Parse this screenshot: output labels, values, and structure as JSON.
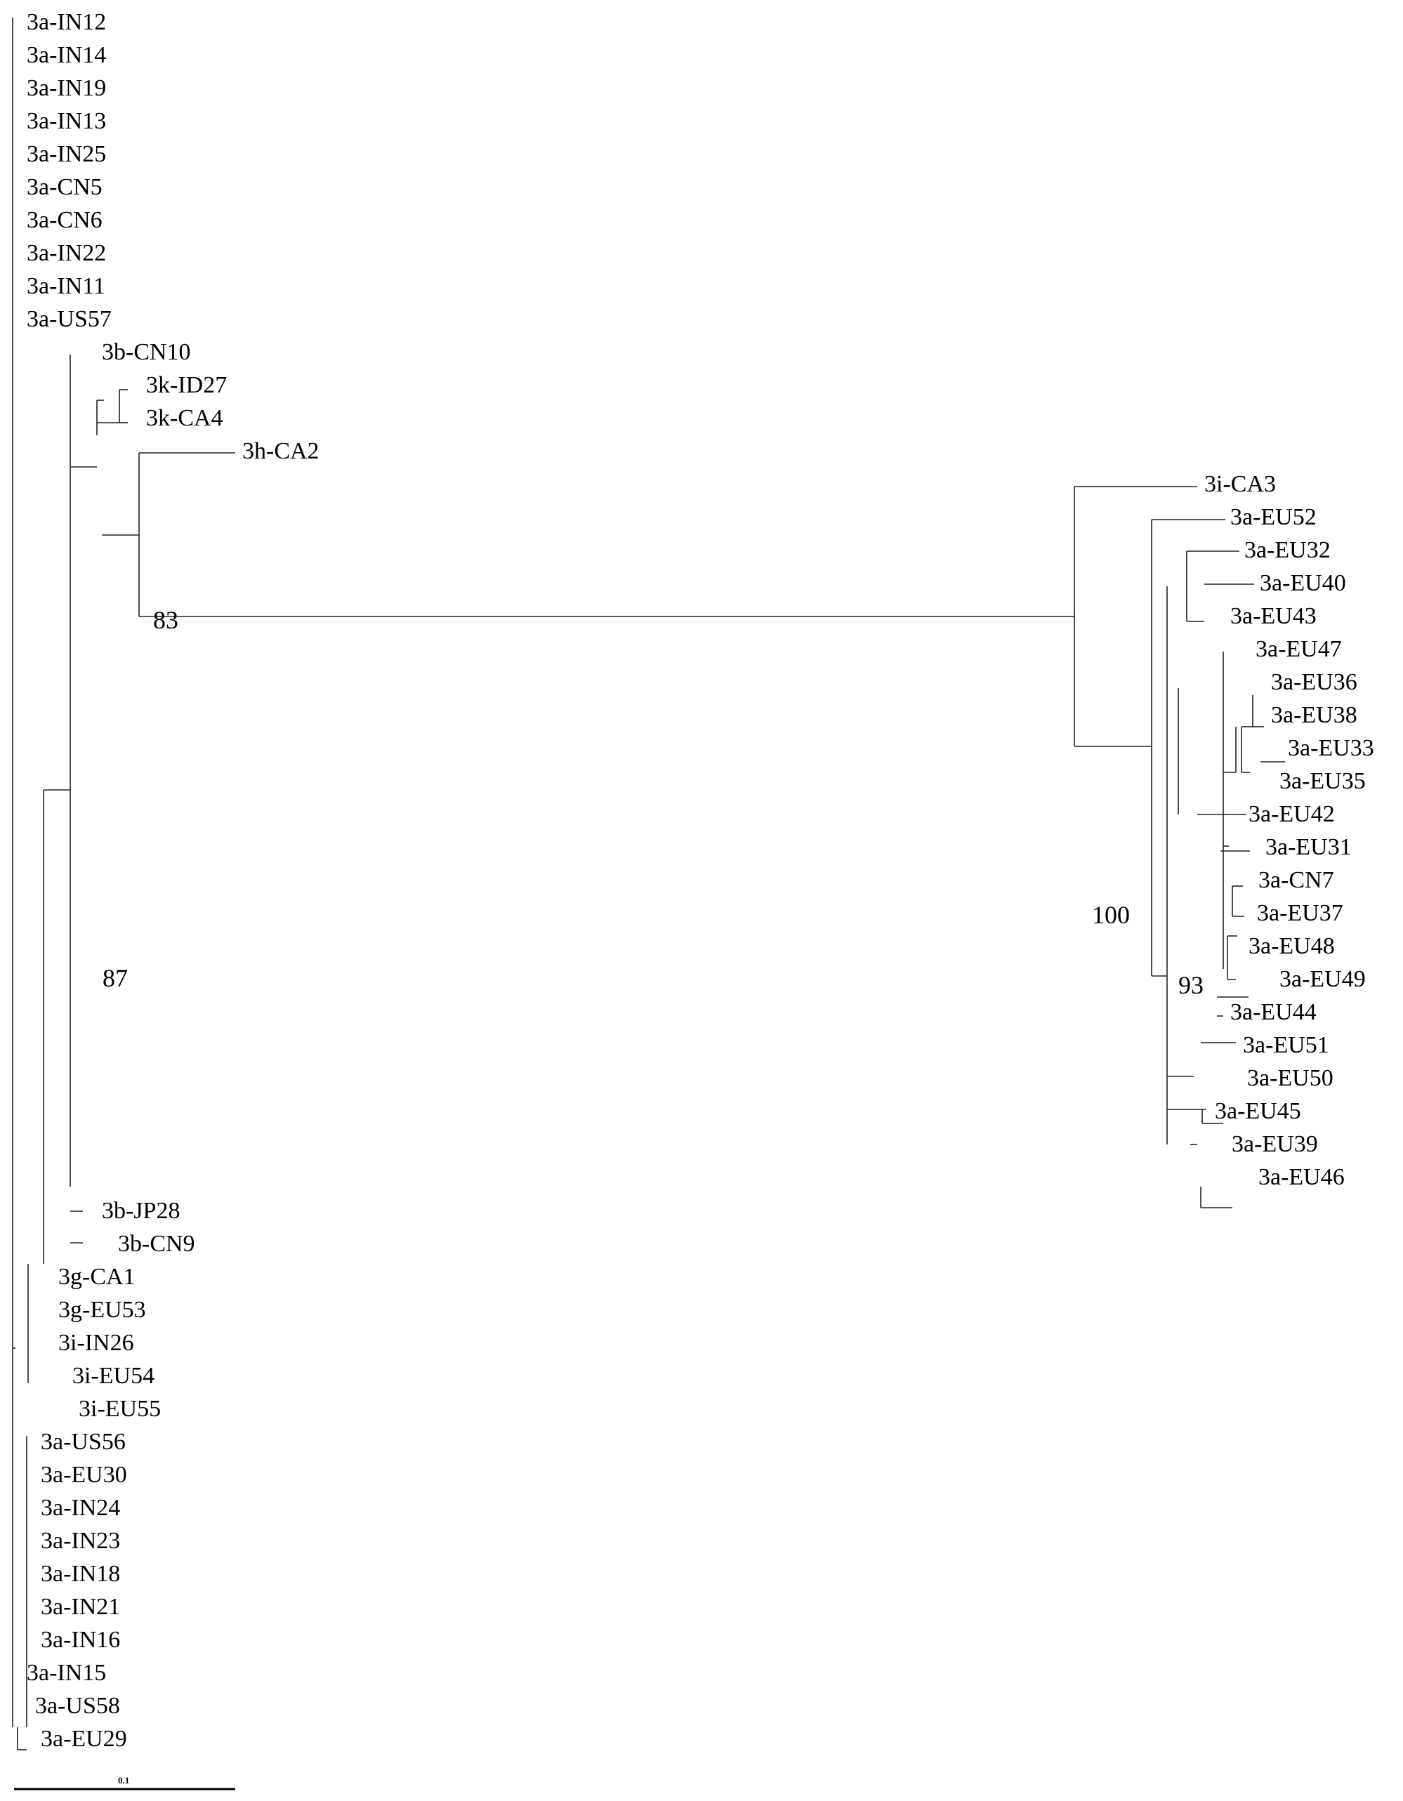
{
  "tree": {
    "taxa": [
      "3a-IN12",
      "3a-IN14",
      "3a-IN19",
      "3a-IN13",
      "3a-IN25",
      "3a-CN5",
      "3a-CN6",
      "3a-IN22",
      "3a-IN11",
      "3a-US57",
      "3b-CN10",
      "3k-ID27",
      "3k-CA4",
      "3h-CA2",
      "3i-CA3",
      "3a-EU52",
      "3a-EU32",
      "3a-EU40",
      "3a-EU43",
      "3a-EU47",
      "3a-EU36",
      "3a-EU38",
      "3a-EU33",
      "3a-EU35",
      "3a-EU42",
      "3a-EU31",
      "3a-CN7",
      "3a-EU37",
      "3a-EU48",
      "3a-EU49",
      "3a-EU44",
      "3a-EU51",
      "3a-EU50",
      "3a-EU45",
      "3a-EU39",
      "3a-EU46",
      "3b-JP28",
      "3b-CN9",
      "3g-CA1",
      "3g-EU53",
      "3i-IN26",
      "3i-EU54",
      "3i-EU55",
      "3a-US56",
      "3a-EU30",
      "3a-IN24",
      "3a-IN23",
      "3a-IN18",
      "3a-IN21",
      "3a-IN16",
      "3a-IN15",
      "3a-US58",
      "3a-EU29"
    ],
    "bootstrap": [
      "83",
      "100",
      "87",
      "93"
    ],
    "scale_label": "0.1"
  }
}
